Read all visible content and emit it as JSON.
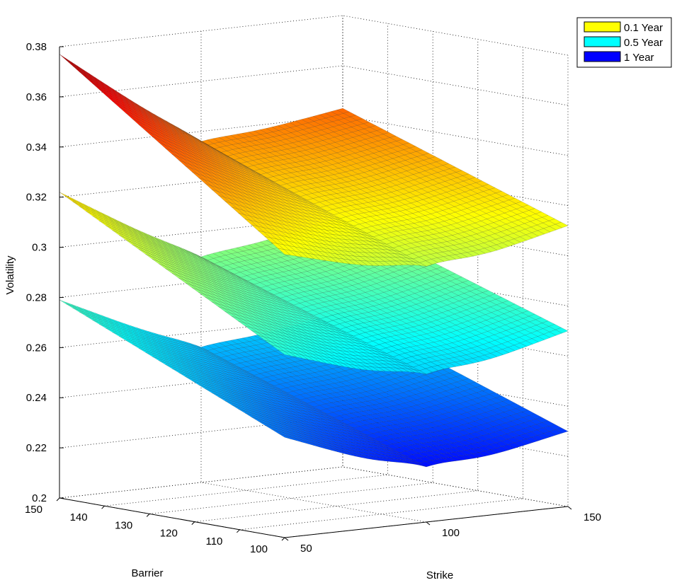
{
  "chart_data": {
    "type": "surface",
    "zlabel": "Volatility",
    "xlabel": "Strike",
    "ylabel": "Barrier",
    "zlim": [
      0.2,
      0.38
    ],
    "z_ticks": [
      "0.2",
      "0.22",
      "0.24",
      "0.26",
      "0.28",
      "0.3",
      "0.32",
      "0.34",
      "0.36",
      "0.38"
    ],
    "x_ticks": [
      "50",
      "100",
      "150"
    ],
    "y_ticks": [
      "100",
      "110",
      "120",
      "130",
      "140",
      "150"
    ],
    "grid": true,
    "legend_position": "top-right",
    "series": [
      {
        "name": "0.1 Year",
        "legend_color": "#ffff00",
        "strike": [
          50,
          100,
          150
        ],
        "barrier": [
          100,
          150
        ],
        "volatility_grid": [
          [
            0.313,
            0.298,
            0.312
          ],
          [
            0.377,
            0.334,
            0.343
          ]
        ]
      },
      {
        "name": "0.5 Year",
        "legend_color": "#00ffff",
        "strike": [
          50,
          100,
          150
        ],
        "barrier": [
          100,
          150
        ],
        "volatility_grid": [
          [
            0.273,
            0.255,
            0.27
          ],
          [
            0.322,
            0.288,
            0.3
          ]
        ]
      },
      {
        "name": "1 Year",
        "legend_color": "#0000ff",
        "strike": [
          50,
          100,
          150
        ],
        "barrier": [
          100,
          150
        ],
        "volatility_grid": [
          [
            0.24,
            0.218,
            0.23
          ],
          [
            0.279,
            0.252,
            0.262
          ]
        ]
      }
    ]
  }
}
